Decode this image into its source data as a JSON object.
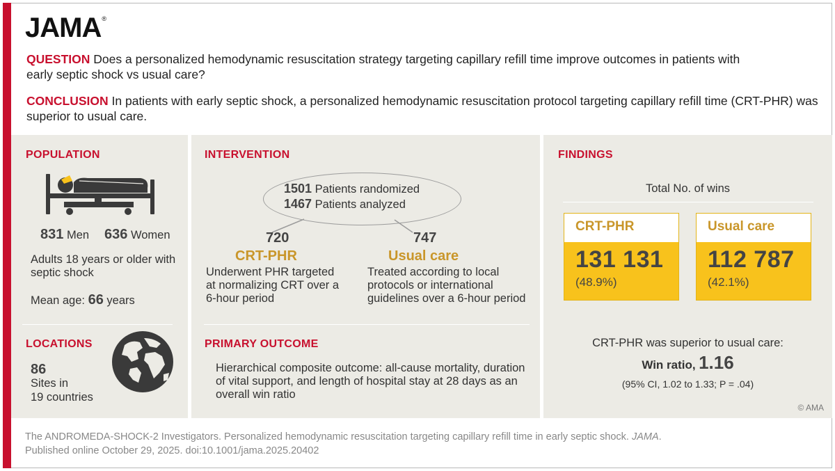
{
  "logo": {
    "text": "JAMA",
    "mark": "®"
  },
  "question": {
    "label": "QUESTION",
    "text": "Does a personalized hemodynamic resuscitation strategy targeting capillary refill time improve outcomes in patients with early septic shock vs usual care?"
  },
  "conclusion": {
    "label": "CONCLUSION",
    "text": "In patients with early septic shock, a personalized hemodynamic resuscitation protocol targeting capillary refill time (CRT-PHR) was superior to usual care."
  },
  "population": {
    "header": "POPULATION",
    "icon": "hospital-bed-icon",
    "men_count": "831",
    "men_label": "Men",
    "women_count": "636",
    "women_label": "Women",
    "description": "Adults 18 years or older with septic shock",
    "mean_age_label": "Mean age:",
    "mean_age_value": "66",
    "mean_age_unit": "years"
  },
  "locations": {
    "header": "LOCATIONS",
    "icon": "globe-icon",
    "sites_count": "86",
    "sites_label": "Sites in",
    "countries": "19 countries"
  },
  "intervention": {
    "header": "INTERVENTION",
    "randomized_count": "1501",
    "randomized_label": "Patients randomized",
    "analyzed_count": "1467",
    "analyzed_label": "Patients analyzed",
    "arm1": {
      "count": "720",
      "name": "CRT-PHR",
      "description": "Underwent PHR targeted at normalizing CRT over a 6-hour period"
    },
    "arm2": {
      "count": "747",
      "name": "Usual care",
      "description": "Treated according to local protocols or international guidelines over a 6-hour period"
    }
  },
  "primary_outcome": {
    "header": "PRIMARY OUTCOME",
    "text": "Hierarchical composite outcome: all-cause mortality, duration of vital support, and length of hospital stay at 28 days as an overall win ratio"
  },
  "findings": {
    "header": "FINDINGS",
    "wins_title": "Total No. of wins",
    "groups": [
      {
        "name": "CRT-PHR",
        "wins": "131 131",
        "pct": "(48.9%)"
      },
      {
        "name": "Usual care",
        "wins": "112 787",
        "pct": "(42.1%)"
      }
    ],
    "summary": "CRT-PHR was superior to usual care:",
    "win_ratio_label": "Win ratio,",
    "win_ratio_value": "1.16",
    "ci": "(95% CI, 1.02 to 1.33; P = .04)",
    "copyright": "© AMA"
  },
  "citation": {
    "line1_prefix": "The ANDROMEDA-SHOCK-2 Investigators. Personalized hemodynamic resuscitation targeting capillary refill time in early septic shock.",
    "journal": "JAMA",
    "line2": "Published online October 29, 2025. doi:10.1001/jama.2025.20402"
  },
  "colors": {
    "accent_red": "#c8102e",
    "gold": "#c9962a",
    "yellow": "#f8c21c",
    "panel_bg": "#ecebe5"
  }
}
